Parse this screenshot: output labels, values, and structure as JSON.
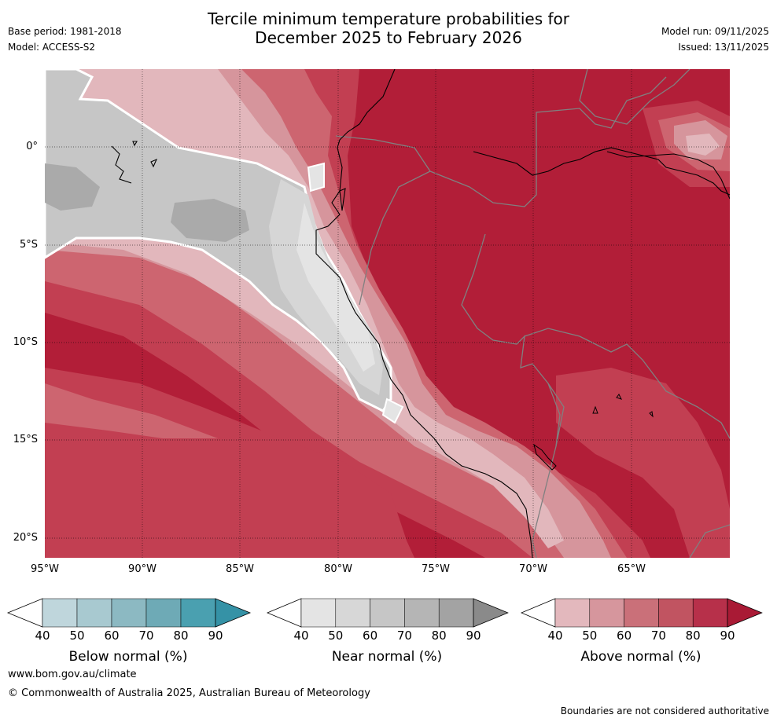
{
  "header": {
    "title_line1": "Tercile minimum temperature probabilities for",
    "title_line2": "December 2025 to February 2026",
    "base_period": "Base period: 1981-2018",
    "model": "Model: ACCESS-S2",
    "model_run": "Model run: 09/11/2025",
    "issued": "Issued: 13/11/2025"
  },
  "map": {
    "lat_labels": [
      "0°",
      "5°S",
      "10°S",
      "15°S",
      "20°S"
    ],
    "lon_labels": [
      "95°W",
      "90°W",
      "85°W",
      "80°W",
      "75°W",
      "70°W",
      "65°W"
    ],
    "colors": {
      "above_90": "#b21e38",
      "above_80": "#c23f52",
      "above_70": "#cd6570",
      "above_60": "#d6959c",
      "above_50": "#e2b7bc",
      "near_70": "#c6c6c6",
      "near_60": "#d6d6d6",
      "near_50": "#e4e4e4",
      "near_80": "#aaaaaa"
    }
  },
  "colorbars": [
    {
      "name": "below",
      "label": "Below normal (%)",
      "ticks": [
        "40",
        "50",
        "60",
        "70",
        "80",
        "90"
      ],
      "colors": [
        "#bfd6dc",
        "#a8c9d0",
        "#8cb9c2",
        "#6eaab6",
        "#4aa0b0",
        "#3592a6"
      ]
    },
    {
      "name": "near",
      "label": "Near normal (%)",
      "ticks": [
        "40",
        "50",
        "60",
        "70",
        "80",
        "90"
      ],
      "colors": [
        "#e4e4e4",
        "#d7d7d7",
        "#c6c6c6",
        "#b5b5b5",
        "#a3a3a3",
        "#8a8a8a"
      ]
    },
    {
      "name": "above",
      "label": "Above normal (%)",
      "ticks": [
        "40",
        "50",
        "60",
        "70",
        "80",
        "90"
      ],
      "colors": [
        "#e3b8bd",
        "#d6969d",
        "#ca7079",
        "#c15461",
        "#b7304a",
        "#a91a35"
      ]
    }
  ],
  "footer": {
    "website": "www.bom.gov.au/climate",
    "copyright": "© Commonwealth of Australia 2025, Australian Bureau of Meteorology",
    "disclaimer": "Boundaries are not considered authoritative"
  }
}
